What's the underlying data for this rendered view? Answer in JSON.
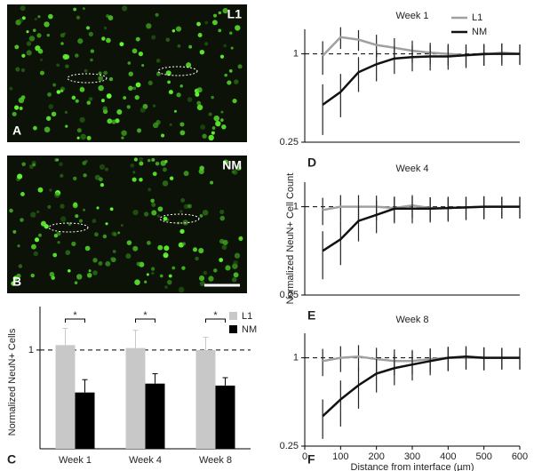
{
  "images": [
    {
      "panel_label": "A",
      "label": "L1"
    },
    {
      "panel_label": "B",
      "label": "NM"
    }
  ],
  "chart_data": [
    {
      "type": "bar",
      "panel_label": "C",
      "ylabel": "Normalized NeuN+ Cells",
      "categories": [
        "Week 1",
        "Week 4",
        "Week 8"
      ],
      "series": [
        {
          "name": "L1",
          "color": "#c8c8c8",
          "values": [
            1.05,
            1.02,
            1.0
          ],
          "errors": [
            0.17,
            0.18,
            0.13
          ]
        },
        {
          "name": "NM",
          "color": "#000000",
          "values": [
            0.57,
            0.66,
            0.64
          ],
          "errors": [
            0.13,
            0.1,
            0.08
          ]
        }
      ],
      "significance": [
        "*",
        "*",
        "*"
      ],
      "ylim": [
        0,
        1.35
      ],
      "yticks": [
        1
      ],
      "reference_line": 1,
      "legend": "upper right"
    },
    {
      "type": "line",
      "panel_label": "D",
      "title": "Week 1",
      "log_y": true,
      "x": [
        50,
        100,
        150,
        200,
        250,
        300,
        350,
        400,
        450,
        500,
        550,
        600
      ],
      "series": [
        {
          "name": "L1",
          "color": "#a0a0a0",
          "values": [
            0.97,
            1.3,
            1.25,
            1.15,
            1.1,
            1.05,
            1.02,
            1.0,
            0.98,
            0.99,
            1.02,
            1.0
          ],
          "errors": [
            0.25,
            0.22,
            0.2,
            0.2,
            0.18,
            0.18,
            0.17,
            0.17,
            0.16,
            0.16,
            0.16,
            0.15
          ]
        },
        {
          "name": "NM",
          "color": "#111111",
          "values": [
            0.45,
            0.55,
            0.75,
            0.85,
            0.93,
            0.95,
            0.96,
            0.96,
            0.98,
            1.0,
            1.0,
            1.0
          ],
          "errors": [
            0.17,
            0.18,
            0.2,
            0.2,
            0.2,
            0.19,
            0.19,
            0.18,
            0.18,
            0.17,
            0.17,
            0.16
          ]
        }
      ],
      "xlim": [
        0,
        600
      ],
      "ylim": [
        0.25,
        1.47
      ],
      "yticks": [
        1,
        0.25
      ],
      "reference_line": 1,
      "legend": "upper right"
    },
    {
      "type": "line",
      "panel_label": "E",
      "title": "Week 4",
      "log_y": true,
      "ylabel": "Normalized NeuN+ Cell Count",
      "x": [
        50,
        100,
        150,
        200,
        250,
        300,
        350,
        400,
        450,
        500,
        550,
        600
      ],
      "series": [
        {
          "name": "L1",
          "color": "#a0a0a0",
          "values": [
            0.95,
            1.0,
            1.0,
            1.0,
            0.98,
            1.02,
            0.98,
            0.98,
            0.99,
            1.0,
            1.0,
            1.0
          ],
          "errors": [
            0.2,
            0.2,
            0.2,
            0.19,
            0.19,
            0.18,
            0.18,
            0.17,
            0.17,
            0.17,
            0.16,
            0.16
          ]
        },
        {
          "name": "NM",
          "color": "#111111",
          "values": [
            0.5,
            0.6,
            0.8,
            0.88,
            0.97,
            0.97,
            0.97,
            0.98,
            0.99,
            1.0,
            1.0,
            1.0
          ],
          "errors": [
            0.18,
            0.2,
            0.22,
            0.22,
            0.2,
            0.2,
            0.19,
            0.19,
            0.18,
            0.18,
            0.17,
            0.17
          ]
        }
      ],
      "xlim": [
        0,
        600
      ],
      "ylim": [
        0.25,
        1.47
      ],
      "yticks": [
        1,
        0.25
      ],
      "reference_line": 1
    },
    {
      "type": "line",
      "panel_label": "F",
      "title": "Week 8",
      "log_y": true,
      "xlabel": "Distance from interface (µm)",
      "x": [
        50,
        100,
        150,
        200,
        250,
        300,
        350,
        400,
        450,
        500,
        550,
        600
      ],
      "series": [
        {
          "name": "L1",
          "color": "#a0a0a0",
          "values": [
            0.95,
            1.0,
            1.02,
            0.98,
            0.95,
            0.95,
            0.98,
            1.0,
            1.0,
            1.0,
            1.0,
            1.0
          ],
          "errors": [
            0.2,
            0.2,
            0.2,
            0.19,
            0.19,
            0.18,
            0.18,
            0.18,
            0.17,
            0.17,
            0.16,
            0.16
          ]
        },
        {
          "name": "NM",
          "color": "#111111",
          "values": [
            0.4,
            0.52,
            0.65,
            0.78,
            0.85,
            0.9,
            0.95,
            1.0,
            1.02,
            1.0,
            1.0,
            1.0
          ],
          "errors": [
            0.12,
            0.18,
            0.2,
            0.2,
            0.2,
            0.2,
            0.19,
            0.19,
            0.18,
            0.18,
            0.17,
            0.17
          ]
        }
      ],
      "xlim": [
        0,
        600
      ],
      "xticks": [
        0,
        100,
        200,
        300,
        400,
        500,
        600
      ],
      "ylim": [
        0.25,
        1.47
      ],
      "yticks": [
        1,
        0.25
      ],
      "reference_line": 1
    }
  ]
}
